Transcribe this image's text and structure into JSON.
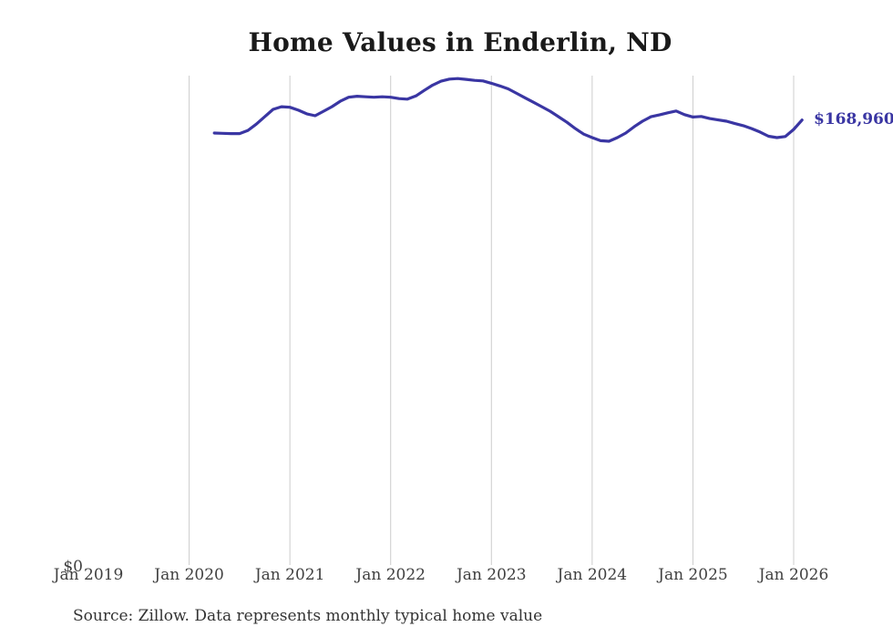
{
  "colors": {
    "line": "#3a36a3",
    "end_label": "#3a36a3",
    "gridline": "#cccccc",
    "title_text": "#1a1a1a",
    "axis_text": "#404040",
    "source_text": "#333333",
    "background": "#ffffff"
  },
  "chart_data": {
    "type": "line",
    "title": "Home Values in Enderlin, ND",
    "series_name": "Typical home value",
    "unit": "USD",
    "source": "Source: Zillow. Data represents monthly typical home value",
    "end_label": "$168,960",
    "end_value": 168960,
    "y_axis": {
      "zero_label": "$0",
      "min": 0,
      "max": 200000,
      "gridlines": false
    },
    "x_ticks": [
      {
        "label": "Jan 2019",
        "gridline": false
      },
      {
        "label": "Jan 2020",
        "gridline": true
      },
      {
        "label": "Jan 2021",
        "gridline": true
      },
      {
        "label": "Jan 2022",
        "gridline": true
      },
      {
        "label": "Jan 2023",
        "gridline": true
      },
      {
        "label": "Jan 2024",
        "gridline": true
      },
      {
        "label": "Jan 2025",
        "gridline": true
      },
      {
        "label": "Jan 2026",
        "gridline": true
      }
    ],
    "start_month_index": 15,
    "months": [
      "2020-04",
      "2020-05",
      "2020-06",
      "2020-07",
      "2020-08",
      "2020-09",
      "2020-10",
      "2020-11",
      "2020-12",
      "2021-01",
      "2021-02",
      "2021-03",
      "2021-04",
      "2021-05",
      "2021-06",
      "2021-07",
      "2021-08",
      "2021-09",
      "2021-10",
      "2021-11",
      "2021-12",
      "2022-01",
      "2022-02",
      "2022-03",
      "2022-04",
      "2022-05",
      "2022-06",
      "2022-07",
      "2022-08",
      "2022-09",
      "2022-10",
      "2022-11",
      "2022-12",
      "2023-01",
      "2023-02",
      "2023-03",
      "2023-04",
      "2023-05",
      "2023-06",
      "2023-07",
      "2023-08",
      "2023-09",
      "2023-10",
      "2023-11",
      "2023-12",
      "2024-01",
      "2024-02",
      "2024-03",
      "2024-04",
      "2024-05",
      "2024-06",
      "2024-07",
      "2024-08",
      "2024-09",
      "2024-10",
      "2024-11",
      "2024-12",
      "2025-01",
      "2025-02",
      "2025-03",
      "2025-04",
      "2025-05",
      "2025-06",
      "2025-07",
      "2025-08",
      "2025-09",
      "2025-10",
      "2025-11",
      "2025-12",
      "2026-01",
      "2026-02"
    ],
    "values": [
      164000,
      163900,
      163800,
      163800,
      165000,
      167400,
      170200,
      173000,
      174000,
      173800,
      172700,
      171300,
      170600,
      172300,
      174000,
      176100,
      177600,
      178000,
      177800,
      177600,
      177800,
      177600,
      177100,
      176900,
      178100,
      180200,
      182200,
      183700,
      184500,
      184700,
      184400,
      184000,
      183800,
      182900,
      181900,
      180800,
      179100,
      177400,
      175700,
      174000,
      172300,
      170200,
      168100,
      165700,
      163600,
      162300,
      161100,
      160900,
      162300,
      164000,
      166400,
      168500,
      170200,
      170900,
      171700,
      172400,
      171000,
      170100,
      170300,
      169500,
      169000,
      168500,
      167600,
      166800,
      165700,
      164400,
      162800,
      162300,
      162700,
      165400,
      168960
    ]
  }
}
